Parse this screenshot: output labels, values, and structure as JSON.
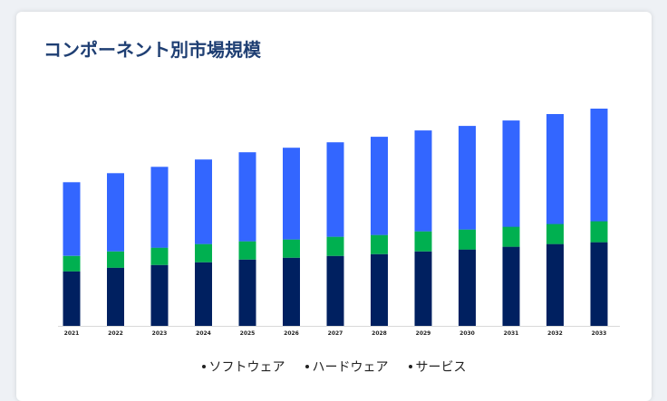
{
  "title": "コンポーネント別市場規模",
  "chart_data": {
    "type": "bar",
    "stacked": true,
    "categories": [
      "2021",
      "2022",
      "2023",
      "2024",
      "2025",
      "2026",
      "2027",
      "2028",
      "2029",
      "2030",
      "2031",
      "2032",
      "2033"
    ],
    "series": [
      {
        "name": "ソフトウェア",
        "color": "#3366ff",
        "values": [
          81,
          86,
          89,
          93,
          98,
          101,
          104,
          108,
          111,
          114,
          117,
          121,
          124
        ]
      },
      {
        "name": "ハードウェア",
        "color": "#00b050",
        "values": [
          17,
          18,
          19,
          20,
          20,
          20,
          21,
          21,
          22,
          22,
          22,
          22,
          23
        ]
      },
      {
        "name": "サービス",
        "color": "#002060",
        "values": [
          60,
          64,
          67,
          70,
          73,
          75,
          77,
          79,
          82,
          84,
          87,
          90,
          92
        ]
      }
    ],
    "legend_position": "bottom",
    "grid": false
  }
}
